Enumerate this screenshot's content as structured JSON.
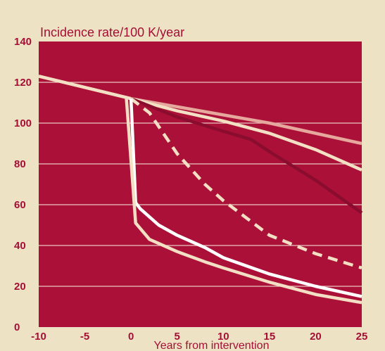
{
  "colors": {
    "page_background": "#ede2c4",
    "plot_background": "#ab1038",
    "gridline": "#e9c7bf"
  },
  "chart_data": {
    "type": "line",
    "ylabel": "Incidence rate/100 K/year",
    "xlabel": "Years from intervention",
    "xlim": [
      -10,
      25
    ],
    "ylim": [
      0,
      140
    ],
    "x_ticks": [
      -10,
      -5,
      0,
      5,
      10,
      15,
      20,
      25
    ],
    "y_ticks": [
      0,
      20,
      40,
      60,
      80,
      100,
      120,
      140
    ],
    "grid": true,
    "series": [
      {
        "color": "#e6a79d",
        "dash": "solid",
        "points": [
          [
            -10,
            123
          ],
          [
            0,
            112
          ],
          [
            5,
            108
          ],
          [
            10,
            104
          ],
          [
            15,
            100
          ],
          [
            20,
            95
          ],
          [
            25,
            90
          ]
        ]
      },
      {
        "color": "#f2dfc4",
        "dash": "solid",
        "points": [
          [
            -10,
            123
          ],
          [
            0,
            112
          ],
          [
            5,
            106
          ],
          [
            10,
            101
          ],
          [
            15,
            95
          ],
          [
            20,
            87
          ],
          [
            25,
            77
          ]
        ]
      },
      {
        "color": "#8a0c2e",
        "dash": "solid",
        "points": [
          [
            0,
            112
          ],
          [
            5,
            103
          ],
          [
            10,
            96
          ],
          [
            13,
            92
          ],
          [
            15,
            86
          ],
          [
            20,
            72
          ],
          [
            25,
            56
          ]
        ]
      },
      {
        "color": "#f2dfc4",
        "dash": "dashed",
        "points": [
          [
            0,
            112
          ],
          [
            2,
            105
          ],
          [
            5,
            85
          ],
          [
            8,
            70
          ],
          [
            10,
            62
          ],
          [
            15,
            45
          ],
          [
            20,
            36
          ],
          [
            25,
            29
          ]
        ]
      },
      {
        "color": "#ffffff",
        "dash": "solid",
        "points": [
          [
            0,
            112
          ],
          [
            0.5,
            61
          ],
          [
            1,
            58
          ],
          [
            3,
            50
          ],
          [
            5,
            45
          ],
          [
            8,
            39
          ],
          [
            10,
            34
          ],
          [
            15,
            26
          ],
          [
            20,
            20
          ],
          [
            25,
            15
          ]
        ]
      },
      {
        "color": "#f2dfc4",
        "dash": "solid",
        "points": [
          [
            -0.5,
            112
          ],
          [
            0.5,
            51
          ],
          [
            2,
            43
          ],
          [
            5,
            37
          ],
          [
            8,
            32
          ],
          [
            10,
            29
          ],
          [
            15,
            22
          ],
          [
            20,
            16
          ],
          [
            25,
            12
          ]
        ]
      }
    ]
  }
}
